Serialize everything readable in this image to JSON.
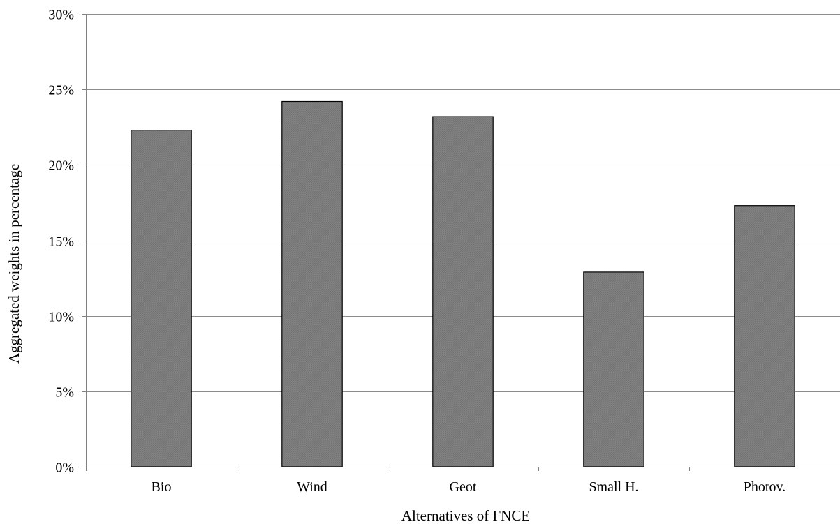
{
  "chart_data": {
    "type": "bar",
    "title": "",
    "xlabel": "Alternatives of FNCE",
    "ylabel": "Aggregated weights in percentage",
    "categories": [
      "Bio",
      "Wind",
      "Geot",
      "Small H.",
      "Photov."
    ],
    "values": [
      22.3,
      24.2,
      23.2,
      12.9,
      17.3
    ],
    "ylim": [
      0,
      30
    ],
    "y_ticks": [
      "0%",
      "5%",
      "10%",
      "15%",
      "20%",
      "25%",
      "30%"
    ],
    "grid": true,
    "legend": "none",
    "colors": {
      "bar_fill": "#808080",
      "bar_stroke": "#000000",
      "grid": "#8c8c8c",
      "axis": "#808080"
    }
  }
}
